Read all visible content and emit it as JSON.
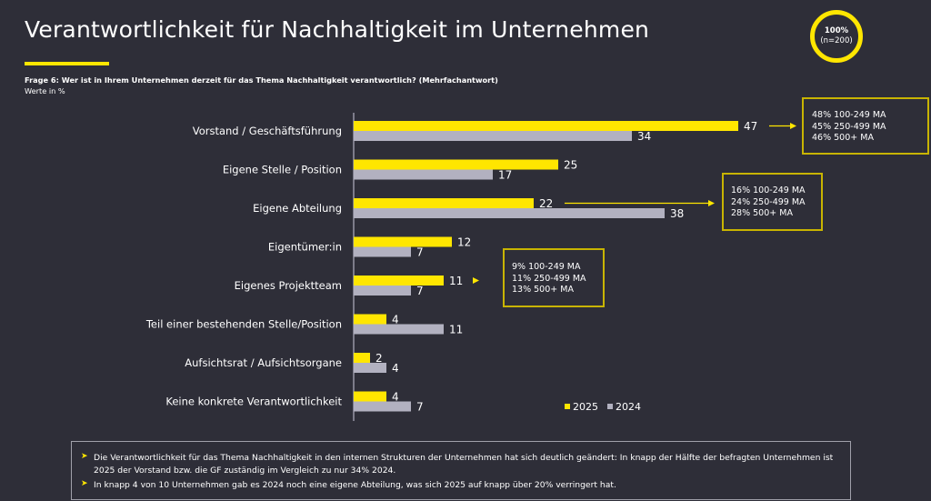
{
  "header": {
    "title": "Verantwortlichkeit für Nachhaltigkeit im Unternehmen",
    "question": "Frage 6: Wer ist in Ihrem Unternehmen derzeit für das Thema Nachhaltigkeit verantwortlich? (Mehrfachantwort)",
    "unit": "Werte in %"
  },
  "sample": {
    "percent": "100%",
    "n": "(n=200)"
  },
  "colors": {
    "accent": "#ffe600",
    "series2024": "#b2b1c0",
    "background": "#2e2e38",
    "callout_border": "#c8b400"
  },
  "chart_data": {
    "type": "bar",
    "orientation": "horizontal",
    "title": "Verantwortlichkeit für Nachhaltigkeit im Unternehmen",
    "xlabel": "",
    "ylabel": "",
    "unit": "Werte in %",
    "xlim": [
      0,
      50
    ],
    "grid": false,
    "legend_position": "bottom-right",
    "categories": [
      "Vorstand / Geschäftsführung",
      "Eigene Stelle / Position",
      "Eigene Abteilung",
      "Eigentümer:in",
      "Eigenes Projektteam",
      "Teil einer bestehenden Stelle/Position",
      "Aufsichtsrat / Aufsichtsorgane",
      "Keine konkrete Verantwortlichkeit"
    ],
    "series": [
      {
        "name": "2025",
        "color": "#ffe600",
        "values": [
          47,
          25,
          22,
          12,
          11,
          4,
          2,
          4
        ]
      },
      {
        "name": "2024",
        "color": "#b2b1c0",
        "values": [
          34,
          17,
          38,
          7,
          7,
          11,
          4,
          7
        ]
      }
    ],
    "annotations": [
      {
        "category": "Vorstand / Geschäftsführung",
        "lines": [
          "48% 100-249 MA",
          "45% 250-499 MA",
          "46% 500+ MA"
        ]
      },
      {
        "category": "Eigene Abteilung",
        "lines": [
          "16% 100-249 MA",
          "24% 250-499 MA",
          "28% 500+ MA"
        ]
      },
      {
        "category": "Eigenes Projektteam",
        "lines": [
          "9% 100-249 MA",
          "11% 250-499 MA",
          "13% 500+ MA"
        ]
      }
    ]
  },
  "summary": {
    "bullets": [
      "Die Verantwortlichkeit für das Thema Nachhaltigkeit in den internen Strukturen der Unternehmen hat sich deutlich geändert: In knapp der Hälfte der befragten Unternehmen ist 2025 der Vorstand bzw. die GF zuständig im Vergleich zu nur 34% 2024.",
      "In knapp 4 von 10 Unternehmen gab es 2024 noch eine eigene Abteilung, was sich 2025 auf knapp über 20% verringert hat."
    ],
    "bullet_icon": "chevron-right-icon"
  }
}
